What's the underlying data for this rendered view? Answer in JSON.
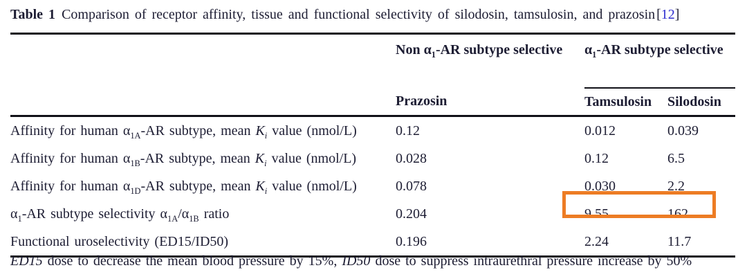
{
  "title": {
    "label": "Table 1",
    "text": "Comparison of receptor affinity, tissue and functional selectivity of silodosin, tamsulosin, and prazosin",
    "citation": {
      "open": "[",
      "number": "12",
      "close": "]"
    }
  },
  "table": {
    "group_headers": {
      "non_selective_rich": "Non α~1~-AR subtype selective",
      "selective_rich": "α~1~-AR subtype selective"
    },
    "column_headers": {
      "prazosin": "Prazosin",
      "tamsulosin": "Tamsulosin",
      "silodosin": "Silodosin"
    },
    "rows": [
      {
        "label_rich": "Affinity for human α~1A~-AR subtype, mean *K~i~* value (nmol/L)",
        "prazosin": "0.12",
        "tamsulosin": "0.012",
        "silodosin": "0.039"
      },
      {
        "label_rich": "Affinity for human α~1B~-AR subtype, mean *K~i~* value (nmol/L)",
        "prazosin": "0.028",
        "tamsulosin": "0.12",
        "silodosin": "6.5"
      },
      {
        "label_rich": "Affinity for human α~1D~-AR subtype, mean *K~i~* value (nmol/L)",
        "prazosin": "0.078",
        "tamsulosin": "0.030",
        "silodosin": "2.2"
      },
      {
        "label_rich": "α~1~-AR subtype selectivity α~1A~/α~1B~ ratio",
        "prazosin": "0.204",
        "tamsulosin": "9.55",
        "silodosin": "162"
      },
      {
        "label_rich": "Functional uroselectivity (ED15/ID50)",
        "prazosin": "0.196",
        "tamsulosin": "2.24",
        "silodosin": "11.7"
      }
    ],
    "highlight": {
      "color": "#ED7C24",
      "highlighted_values": [
        "9.55",
        "162"
      ],
      "highlighted_row": "α1-AR subtype selectivity α1A/α1B ratio"
    }
  },
  "footnote_rich": "*ED15* dose to decrease the mean blood pressure by 15%, *ID50* dose to suppress intraurethral pressure increase by 50%",
  "colors": {
    "text": "#1d1d33",
    "rule": "#111118",
    "citation_blue": "#2d2dcf",
    "highlight_orange": "#ED7C24"
  }
}
